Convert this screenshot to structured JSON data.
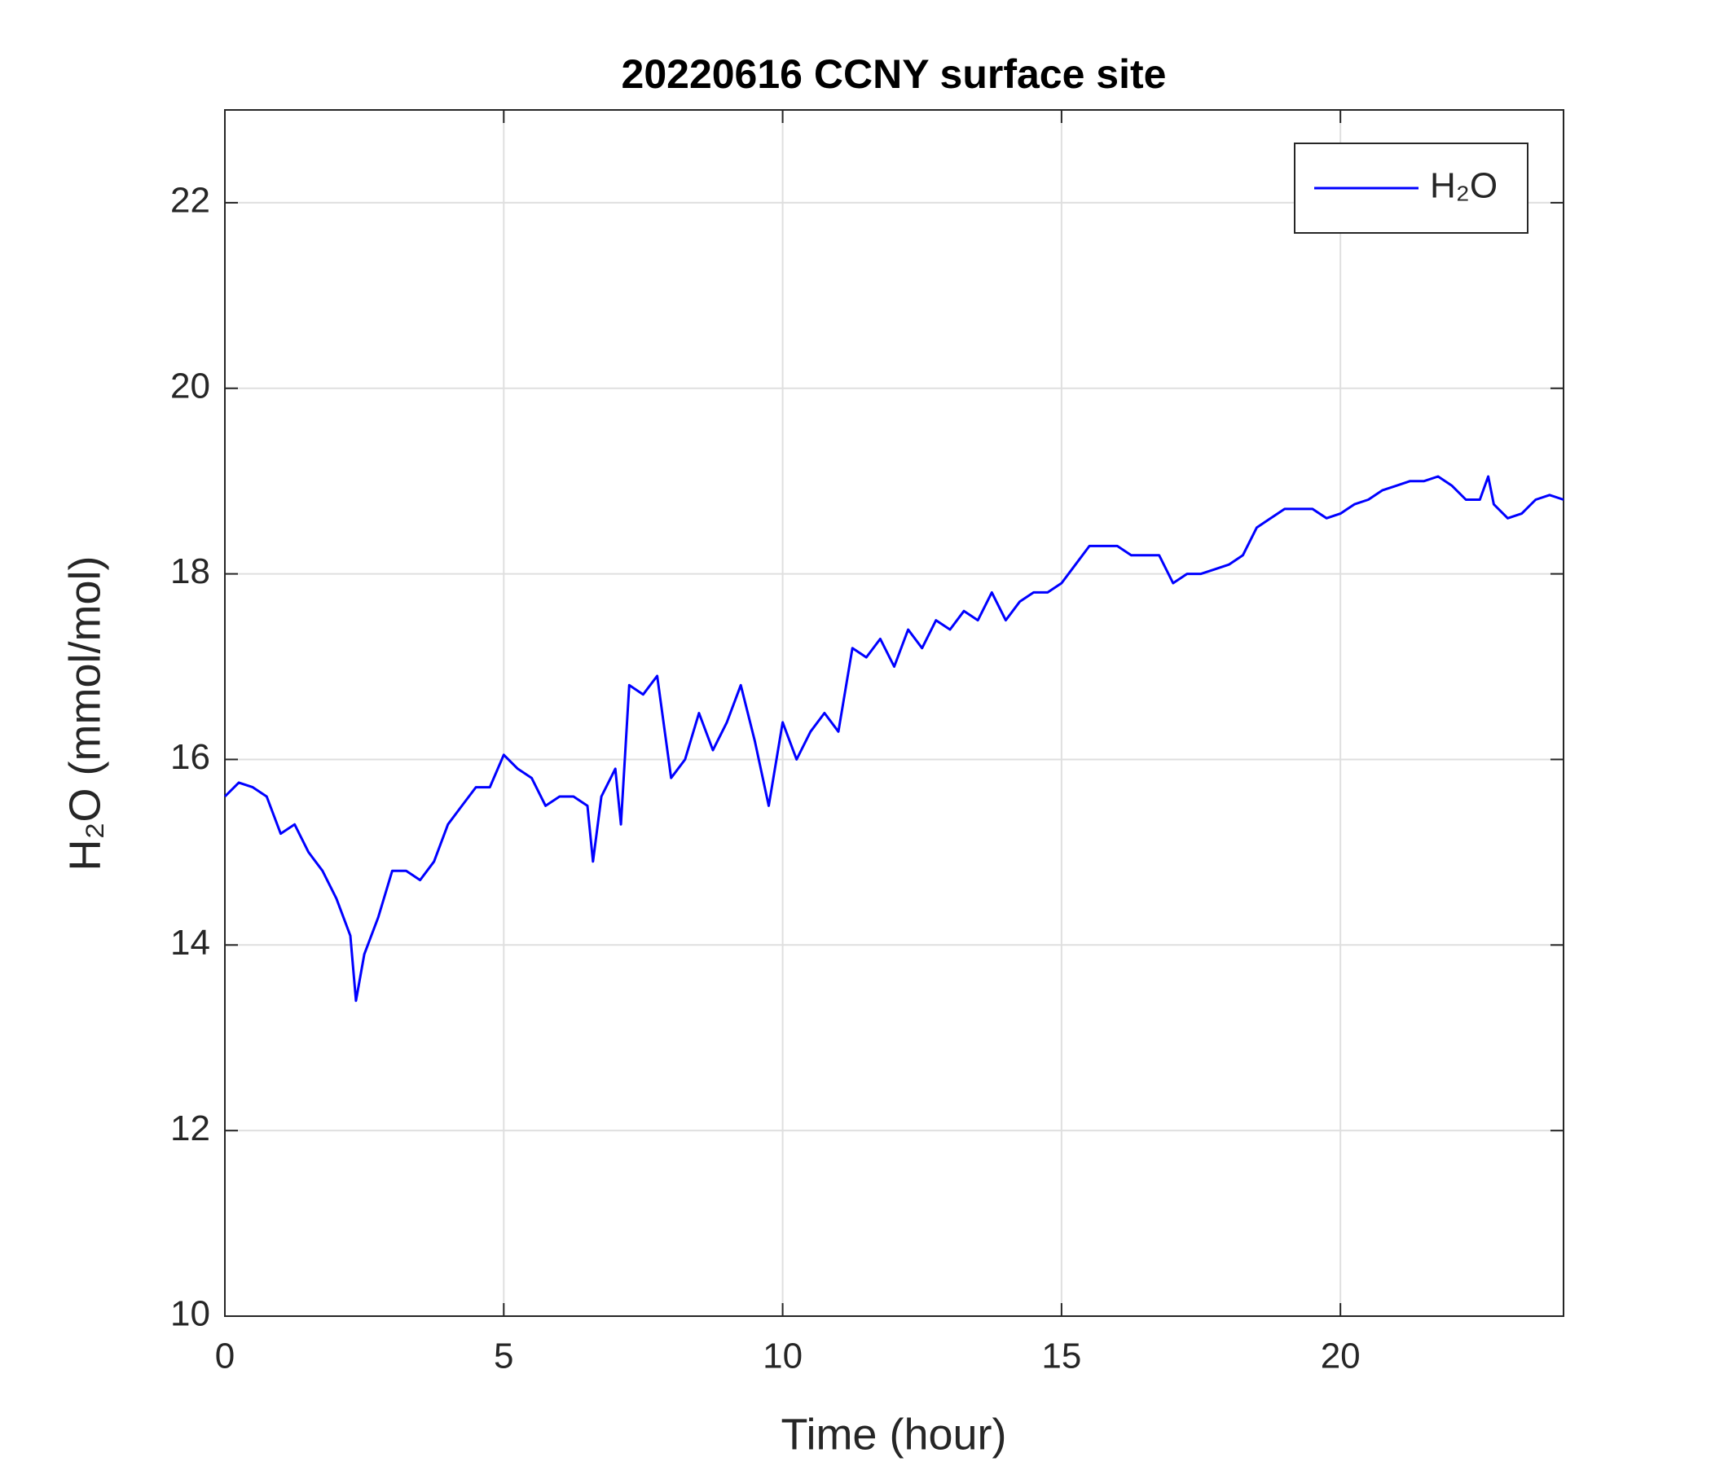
{
  "chart_data": {
    "type": "line",
    "title": "20220616 CCNY surface site",
    "xlabel": "Time (hour)",
    "ylabel": "H₂O (mmol/mol)",
    "xlim": [
      0,
      24
    ],
    "ylim": [
      10,
      23
    ],
    "xticks": [
      0,
      5,
      10,
      15,
      20
    ],
    "yticks": [
      10,
      12,
      14,
      16,
      18,
      20,
      22
    ],
    "grid": true,
    "legend": "northeast",
    "x": [
      0,
      0.25,
      0.5,
      0.75,
      1,
      1.25,
      1.5,
      1.75,
      2,
      2.25,
      2.35,
      2.5,
      2.75,
      3,
      3.25,
      3.5,
      3.75,
      4,
      4.25,
      4.5,
      4.75,
      5,
      5.25,
      5.5,
      5.75,
      6,
      6.25,
      6.5,
      6.6,
      6.75,
      7,
      7.1,
      7.25,
      7.5,
      7.75,
      8,
      8.25,
      8.5,
      8.75,
      9,
      9.25,
      9.5,
      9.75,
      10,
      10.25,
      10.5,
      10.75,
      11,
      11.25,
      11.5,
      11.75,
      12,
      12.25,
      12.5,
      12.75,
      13,
      13.25,
      13.5,
      13.75,
      14,
      14.25,
      14.5,
      14.75,
      15,
      15.25,
      15.5,
      15.75,
      16,
      16.25,
      16.5,
      16.75,
      17,
      17.25,
      17.5,
      17.75,
      18,
      18.25,
      18.5,
      18.75,
      19,
      19.25,
      19.5,
      19.75,
      20,
      20.25,
      20.5,
      20.75,
      21,
      21.25,
      21.5,
      21.75,
      22,
      22.25,
      22.5,
      22.65,
      22.75,
      23,
      23.25,
      23.5,
      23.75,
      24
    ],
    "series": [
      {
        "name": "H₂O",
        "color": "#0000ff",
        "values": [
          15.6,
          15.75,
          15.7,
          15.6,
          15.2,
          15.3,
          15.0,
          14.8,
          14.5,
          14.1,
          13.4,
          13.9,
          14.3,
          14.8,
          14.8,
          14.7,
          14.9,
          15.3,
          15.5,
          15.7,
          15.7,
          16.05,
          15.9,
          15.8,
          15.5,
          15.6,
          15.6,
          15.5,
          14.9,
          15.6,
          15.9,
          15.3,
          16.8,
          16.7,
          16.9,
          15.8,
          16.0,
          16.5,
          16.1,
          16.4,
          16.8,
          16.2,
          15.5,
          16.4,
          16.0,
          16.3,
          16.5,
          16.3,
          17.2,
          17.1,
          17.3,
          17.0,
          17.4,
          17.2,
          17.5,
          17.4,
          17.6,
          17.5,
          17.8,
          17.5,
          17.7,
          17.8,
          17.8,
          17.9,
          18.1,
          18.3,
          18.3,
          18.3,
          18.2,
          18.2,
          18.2,
          17.9,
          18.0,
          18.0,
          18.05,
          18.1,
          18.2,
          18.5,
          18.6,
          18.7,
          18.7,
          18.7,
          18.6,
          18.65,
          18.75,
          18.8,
          18.9,
          18.95,
          19.0,
          19.0,
          19.05,
          18.95,
          18.8,
          18.8,
          19.05,
          18.75,
          18.6,
          18.65,
          18.8,
          18.85,
          18.8
        ]
      }
    ]
  }
}
